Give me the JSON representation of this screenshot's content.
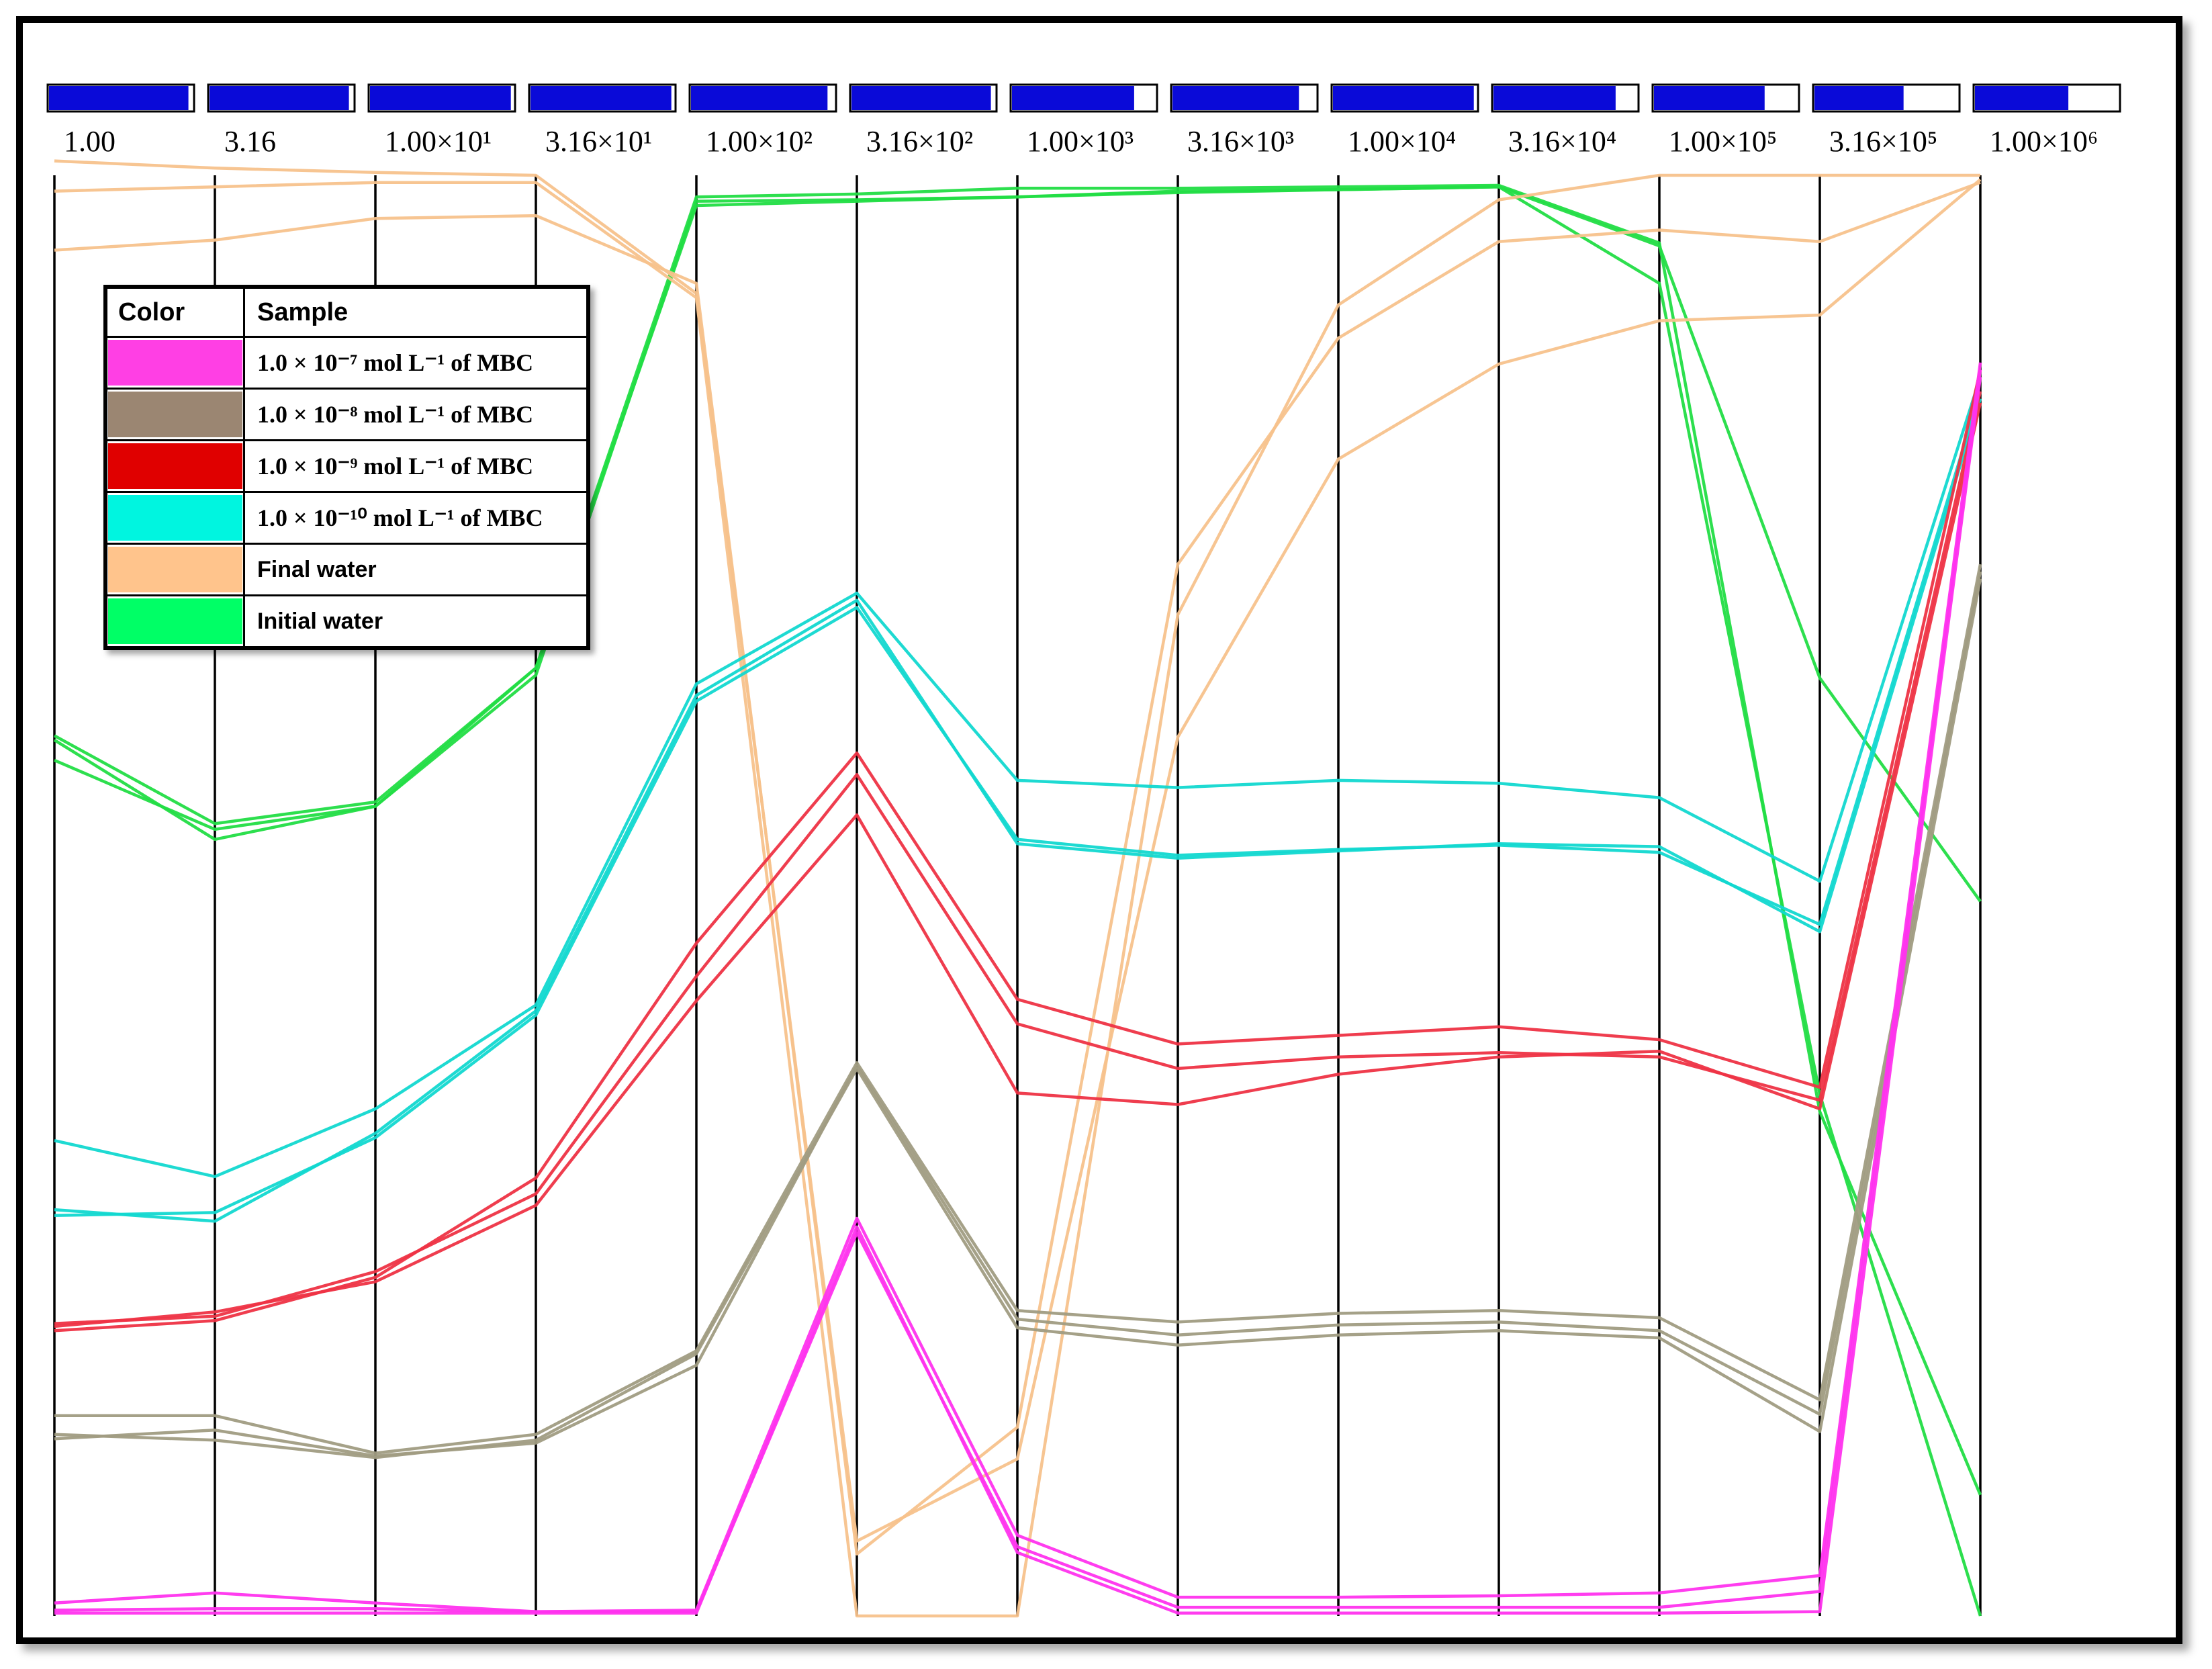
{
  "chart_data": {
    "type": "parallel-coordinates",
    "axes": [
      "1.00",
      "3.16",
      "1.00×10¹",
      "3.16×10¹",
      "1.00×10²",
      "3.16×10²",
      "1.00×10³",
      "3.16×10³",
      "1.00×10⁴",
      "3.16×10⁴",
      "1.00×10⁵",
      "3.16×10⁵",
      "1.00×10⁶"
    ],
    "axis_bar_fill": [
      0.97,
      0.97,
      0.98,
      0.98,
      0.95,
      0.97,
      0.85,
      0.88,
      0.98,
      0.85,
      0.77,
      0.62,
      0.65
    ],
    "value_range": [
      0,
      100
    ],
    "legend": {
      "headers": [
        "Color",
        "Sample"
      ],
      "entries": [
        {
          "key": "mbc7",
          "label": "1.0 × 10⁻⁷ mol L⁻¹ of MBC",
          "color": "#ff3fe4"
        },
        {
          "key": "mbc8",
          "label": "1.0 × 10⁻⁸ mol L⁻¹ of MBC",
          "color": "#9b8672"
        },
        {
          "key": "mbc9",
          "label": "1.0 × 10⁻⁹ mol L⁻¹ of MBC",
          "color": "#e00000"
        },
        {
          "key": "mbc10",
          "label": "1.0 × 10⁻¹⁰ mol L⁻¹ of MBC",
          "color": "#00f5e0"
        },
        {
          "key": "final",
          "label": "Final water",
          "color": "#ffc48c"
        },
        {
          "key": "initial",
          "label": "Initial water",
          "color": "#00ff66"
        }
      ]
    },
    "series": [
      {
        "group": "initial",
        "color": "#22dd44",
        "values": [
          59.4,
          54.6,
          56.2,
          65.3,
          98.2,
          98.3,
          98.5,
          98.9,
          99.0,
          99.2,
          95.1,
          65.1,
          49.6
        ]
      },
      {
        "group": "initial",
        "color": "#22dd44",
        "values": [
          61.1,
          55.0,
          56.5,
          65.8,
          98.5,
          98.7,
          99.1,
          99.1,
          99.2,
          99.3,
          95.3,
          35.0,
          8.4
        ]
      },
      {
        "group": "initial",
        "color": "#22dd44",
        "values": [
          60.8,
          53.9,
          56.2,
          65.8,
          97.9,
          98.2,
          98.5,
          98.8,
          99.0,
          99.2,
          92.5,
          36.2,
          0.0
        ]
      },
      {
        "group": "final",
        "color": "#f7c28c",
        "values": [
          98.9,
          99.2,
          99.5,
          99.5,
          91.5,
          0.0,
          0.0,
          69.5,
          91.0,
          98.3,
          100.0,
          100.0,
          100.0
        ]
      },
      {
        "group": "final",
        "color": "#f7c28c",
        "values": [
          94.8,
          95.5,
          97.0,
          97.2,
          92.5,
          4.3,
          13.1,
          73.0,
          88.7,
          95.4,
          96.2,
          95.4,
          99.5
        ]
      },
      {
        "group": "final",
        "color": "#f7c28c",
        "values": [
          101.0,
          100.5,
          100.2,
          100.0,
          91.8,
          5.2,
          10.9,
          61.0,
          80.3,
          86.9,
          89.9,
          90.3,
          99.7
        ]
      },
      {
        "group": "mbc10",
        "color": "#12d8d0",
        "values": [
          33.0,
          30.5,
          35.2,
          42.4,
          64.7,
          71.0,
          58.0,
          57.5,
          58.0,
          57.8,
          56.8,
          51.0,
          86.0
        ]
      },
      {
        "group": "mbc10",
        "color": "#12d8d0",
        "values": [
          27.8,
          28.0,
          33.2,
          41.7,
          63.5,
          70.0,
          53.9,
          52.8,
          53.2,
          53.5,
          53.0,
          48.0,
          85.0
        ]
      },
      {
        "group": "mbc10",
        "color": "#12d8d0",
        "values": [
          28.2,
          27.4,
          33.5,
          42.0,
          63.9,
          70.5,
          53.6,
          52.6,
          53.1,
          53.6,
          53.4,
          47.5,
          84.5
        ]
      },
      {
        "group": "mbc9",
        "color": "#ee3344",
        "values": [
          19.8,
          20.5,
          23.5,
          30.4,
          46.7,
          59.9,
          42.8,
          39.7,
          40.3,
          40.9,
          40.0,
          36.7,
          86.5
        ]
      },
      {
        "group": "mbc9",
        "color": "#ee3344",
        "values": [
          20.3,
          20.8,
          23.9,
          29.3,
          44.4,
          58.4,
          41.1,
          38.0,
          38.8,
          39.1,
          38.8,
          35.8,
          85.0
        ]
      },
      {
        "group": "mbc9",
        "color": "#ee3344",
        "values": [
          20.1,
          21.1,
          23.2,
          28.5,
          42.7,
          55.6,
          36.3,
          35.5,
          37.6,
          38.8,
          39.2,
          35.2,
          84.2
        ]
      },
      {
        "group": "mbc8",
        "color": "#a09c82",
        "values": [
          13.9,
          13.9,
          11.3,
          12.6,
          18.4,
          38.4,
          21.2,
          20.4,
          21.0,
          21.2,
          20.7,
          15.0,
          73.0
        ]
      },
      {
        "group": "mbc8",
        "color": "#a09c82",
        "values": [
          12.3,
          12.9,
          11.1,
          12.0,
          17.4,
          38.2,
          20.6,
          19.5,
          20.2,
          20.4,
          19.8,
          14.0,
          72.5
        ]
      },
      {
        "group": "mbc8",
        "color": "#a09c82",
        "values": [
          12.6,
          12.2,
          11.0,
          12.2,
          18.2,
          38.0,
          20.0,
          18.8,
          19.5,
          19.8,
          19.3,
          12.8,
          72.0
        ]
      },
      {
        "group": "mbc7",
        "color": "#ff33ee",
        "values": [
          0.9,
          1.6,
          0.9,
          0.3,
          0.4,
          27.6,
          5.6,
          1.3,
          1.3,
          1.4,
          1.6,
          2.8,
          87.0
        ]
      },
      {
        "group": "mbc7",
        "color": "#ff33ee",
        "values": [
          0.4,
          0.5,
          0.5,
          0.3,
          0.3,
          26.6,
          4.8,
          0.6,
          0.6,
          0.6,
          0.6,
          1.7,
          86.5
        ]
      },
      {
        "group": "mbc7",
        "color": "#ff33ee",
        "values": [
          0.2,
          0.2,
          0.2,
          0.2,
          0.2,
          27.0,
          4.4,
          0.2,
          0.2,
          0.2,
          0.2,
          0.3,
          86.0
        ]
      }
    ]
  }
}
